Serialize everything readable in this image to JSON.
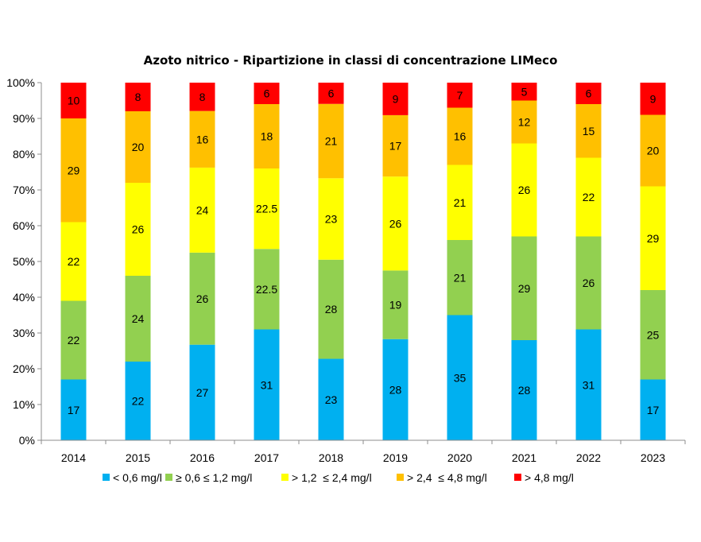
{
  "chart_data": {
    "type": "bar",
    "stacked": true,
    "percent": true,
    "title": "Azoto nitrico - Ripartizione in classi di concentrazione LIMeco",
    "xlabel": "",
    "ylabel": "",
    "ylim": [
      0,
      100
    ],
    "yticks": [
      "0%",
      "10%",
      "20%",
      "30%",
      "40%",
      "50%",
      "60%",
      "70%",
      "80%",
      "90%",
      "100%"
    ],
    "categories": [
      "2014",
      "2015",
      "2016",
      "2017",
      "2018",
      "2019",
      "2020",
      "2021",
      "2022",
      "2023"
    ],
    "series": [
      {
        "name": "< 0,6 mg/l",
        "color": "#00B0F0",
        "values": [
          17,
          22,
          27,
          31,
          23,
          28,
          35,
          28,
          31,
          17
        ],
        "labels": [
          "17",
          "22",
          "27",
          "31",
          "23",
          "28",
          "35",
          "28",
          "31",
          "17"
        ]
      },
      {
        "name": "≥ 0,6 ≤ 1,2 mg/l",
        "color": "#92D050",
        "values": [
          22,
          24,
          26,
          22.5,
          28,
          19,
          21,
          29,
          26,
          25
        ],
        "labels": [
          "22",
          "24",
          "26",
          "22.5",
          "28",
          "19",
          "21",
          "29",
          "26",
          "25"
        ]
      },
      {
        "name": "> 1,2  ≤ 2,4 mg/l",
        "color": "#FFFF00",
        "values": [
          22,
          26,
          24,
          22.5,
          23,
          26,
          21,
          26,
          22,
          29
        ],
        "labels": [
          "22",
          "26",
          "24",
          "22.5",
          "23",
          "26",
          "21",
          "26",
          "22",
          "29"
        ]
      },
      {
        "name": "> 2,4  ≤ 4,8 mg/l",
        "color": "#FFC000",
        "values": [
          29,
          20,
          16,
          18,
          21,
          17,
          16,
          12,
          15,
          20
        ],
        "labels": [
          "29",
          "20",
          "16",
          "18",
          "21",
          "17",
          "16",
          "12",
          "15",
          "20"
        ]
      },
      {
        "name": "> 4,8 mg/l",
        "color": "#FF0000",
        "values": [
          10,
          8,
          8,
          6,
          6,
          9,
          7,
          5,
          6,
          9
        ],
        "labels": [
          "10",
          "8",
          "8",
          "6",
          "6",
          "9",
          "7",
          "5",
          "6",
          "9"
        ]
      }
    ],
    "grid": false,
    "legend": "bottom"
  }
}
